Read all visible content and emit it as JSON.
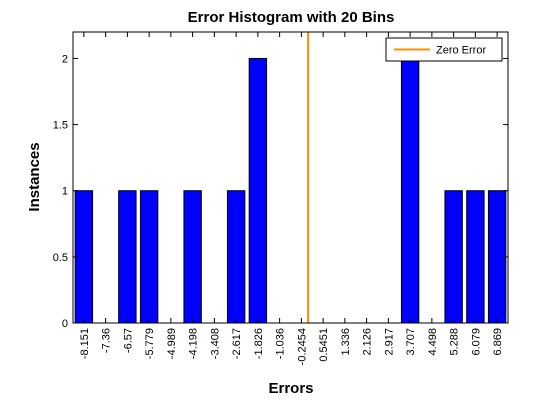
{
  "chart_data": {
    "type": "bar",
    "title": "Error Histogram with 20 Bins",
    "xlabel": "Errors",
    "ylabel": "Instances",
    "categories": [
      "-8.151",
      "-7.36",
      "-6.57",
      "-5.779",
      "-4.989",
      "-4.198",
      "-3.408",
      "-2.617",
      "-1.826",
      "-1.036",
      "-0.2454",
      "0.5451",
      "1.336",
      "2.126",
      "2.917",
      "3.707",
      "4.498",
      "5.288",
      "6.079",
      "6.869"
    ],
    "values": [
      1,
      0,
      1,
      1,
      0,
      1,
      0,
      1,
      2,
      0,
      0,
      0,
      0,
      0,
      0,
      2,
      0,
      1,
      1,
      1
    ],
    "ylim": [
      0,
      2.2
    ],
    "yticks": [
      0,
      0.5,
      1,
      1.5,
      2
    ],
    "ytick_labels": [
      "0",
      "0.5",
      "1",
      "1.5",
      "2"
    ],
    "zero_error_x": 0,
    "legend": {
      "position": "top-right",
      "entries": [
        {
          "label": "Zero Error",
          "color": "#ff8c00"
        }
      ]
    },
    "colors": {
      "bar_fill": "#0000ff",
      "bar_edge": "#000000",
      "zero_line": "#ff8c00",
      "axis": "#000000",
      "background": "#ffffff"
    }
  }
}
